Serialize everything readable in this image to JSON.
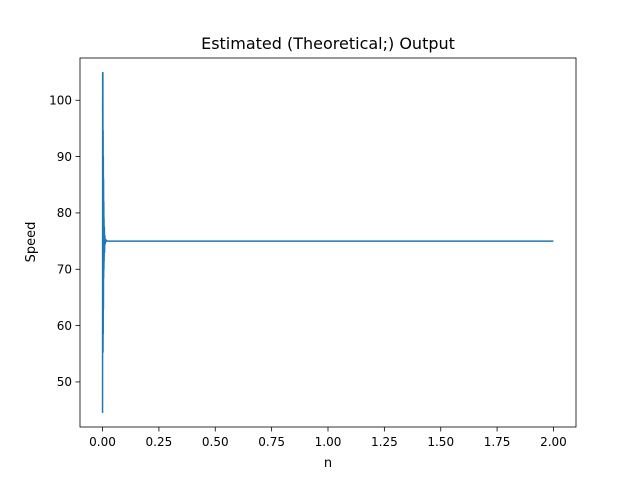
{
  "chart_data": {
    "type": "line",
    "title": "Estimated (Theoretical;) Output",
    "xlabel": "n",
    "ylabel": "Speed",
    "xlim": [
      -0.1,
      2.1
    ],
    "ylim": [
      42.0,
      107.5
    ],
    "grid": false,
    "x_ticks": [
      0.0,
      0.25,
      0.5,
      0.75,
      1.0,
      1.25,
      1.5,
      1.75,
      2.0
    ],
    "x_tick_labels": [
      "0.00",
      "0.25",
      "0.50",
      "0.75",
      "1.00",
      "1.25",
      "1.50",
      "1.75",
      "2.00"
    ],
    "y_ticks": [
      50,
      60,
      70,
      80,
      90,
      100
    ],
    "y_tick_labels": [
      "50",
      "60",
      "70",
      "80",
      "90",
      "100"
    ],
    "series": [
      {
        "color": "#1f77b4",
        "x": [
          0.0,
          0.0005,
          0.001,
          0.0015,
          0.002,
          0.0025,
          0.003,
          0.0035,
          0.004,
          0.0045,
          0.005,
          0.0055,
          0.006,
          0.0065,
          0.007,
          0.008,
          0.009,
          0.01,
          0.012,
          0.015,
          0.02,
          0.05,
          0.1,
          0.5,
          1.0,
          1.5,
          2.0
        ],
        "y": [
          44.5,
          104.9,
          55.3,
          104.9,
          55.3,
          94.6,
          58.5,
          90.0,
          63.0,
          86.0,
          68.5,
          82.0,
          70.0,
          79.0,
          71.5,
          77.5,
          73.0,
          76.0,
          74.5,
          75.2,
          75.0,
          75.0,
          75.0,
          75.0,
          75.0,
          75.0,
          75.0
        ]
      }
    ]
  }
}
